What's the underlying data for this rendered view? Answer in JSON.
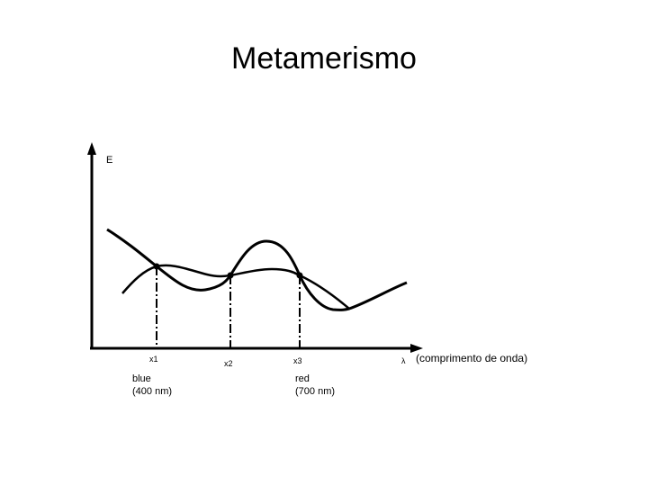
{
  "title": "Metamerismo",
  "axes": {
    "y_label": "E",
    "x_symbol": "λ",
    "x_label": "(comprimento de onda)"
  },
  "markers": [
    {
      "label": "x1",
      "sublabel": "blue",
      "sublabel2": "(400 nm)"
    },
    {
      "label": "x2",
      "sublabel": "",
      "sublabel2": ""
    },
    {
      "label": "x3",
      "sublabel": "red",
      "sublabel2": "(700 nm)"
    }
  ]
}
